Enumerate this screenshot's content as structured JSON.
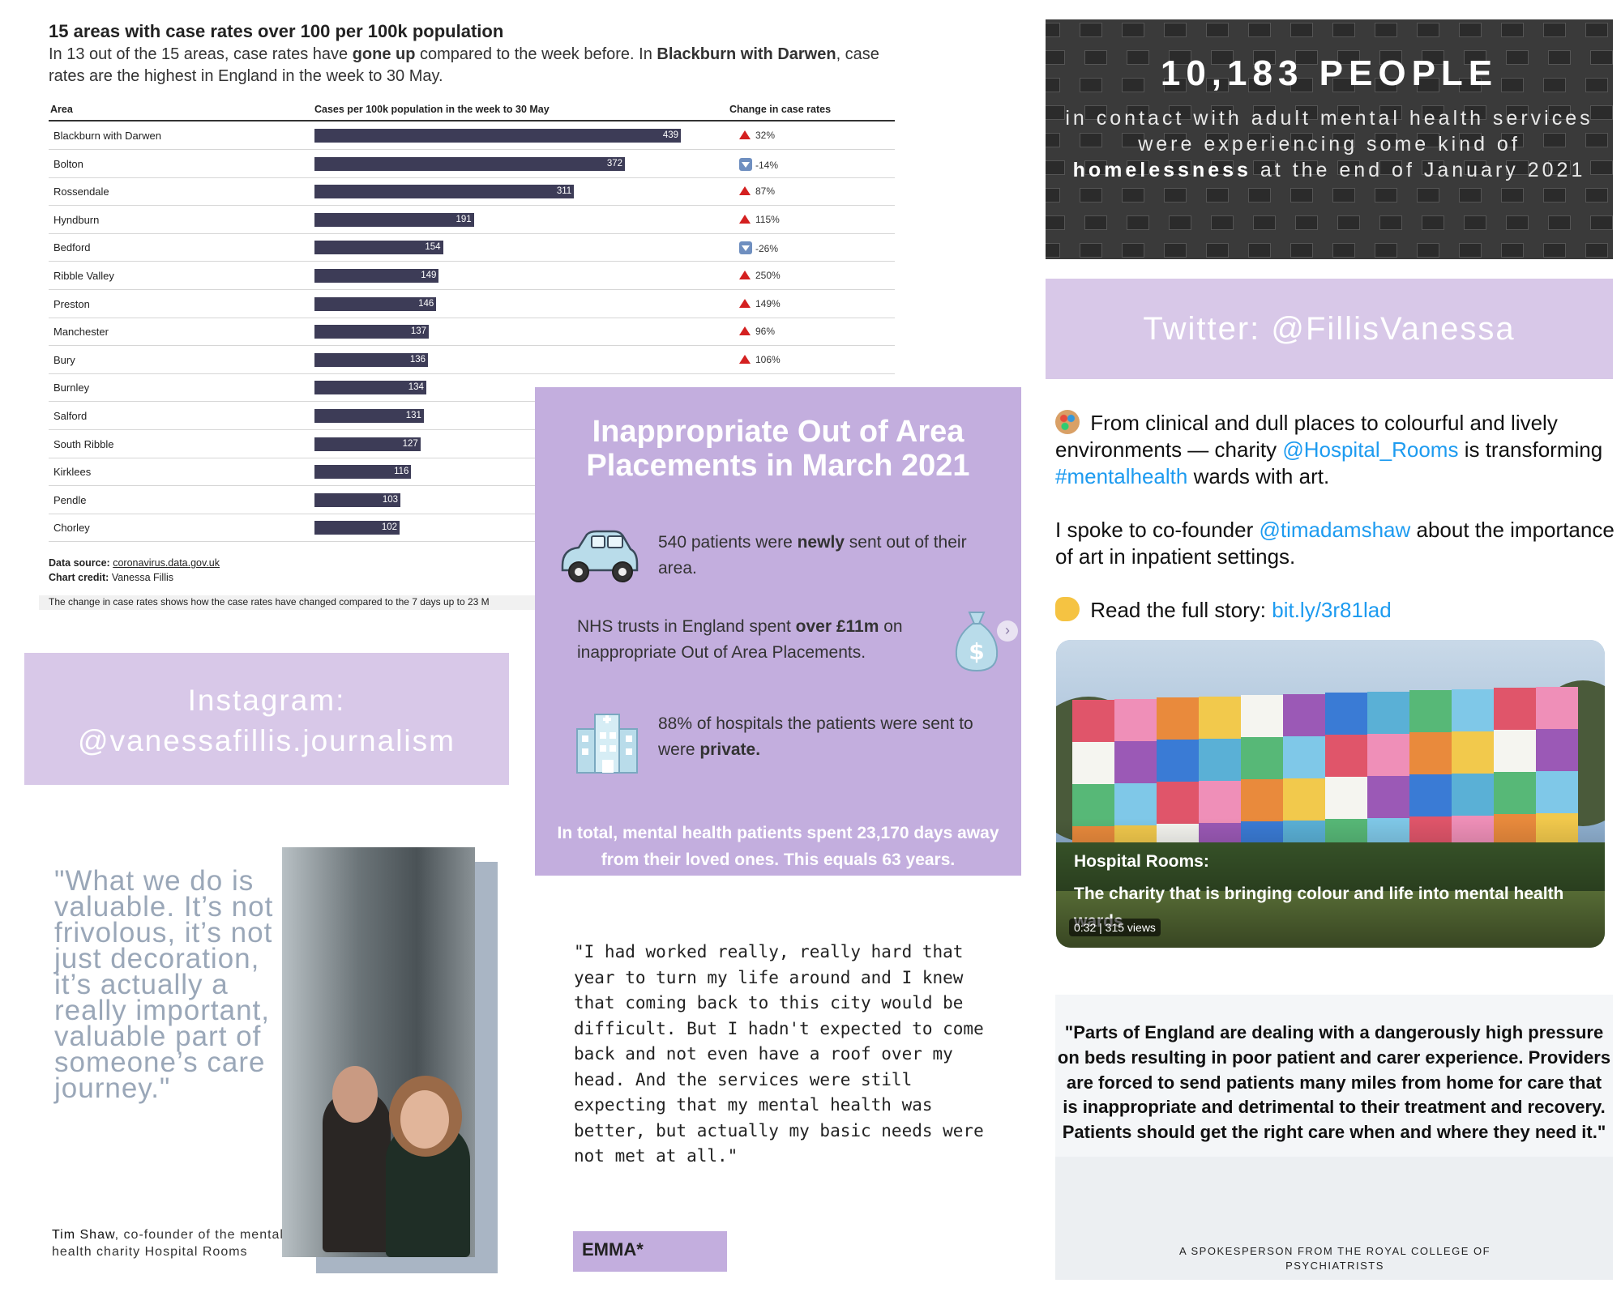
{
  "chart": {
    "title": "15 areas with case rates over 100 per 100k population",
    "subtitle_parts": {
      "p1": "In 13 out of the 15 areas, case rates have ",
      "b1": "gone up",
      "p2": " compared to the week before. In ",
      "b2": "Blackburn with Darwen",
      "p3": ", case rates are the highest in England in the week to 30 May."
    },
    "col_area": "Area",
    "col_cases": "Cases per 100k population in the week to 30 May",
    "col_change": "Change in case rates",
    "rows": [
      {
        "area": "Blackburn with Darwen",
        "value": "439",
        "change": "32%",
        "dir": "up"
      },
      {
        "area": "Bolton",
        "value": "372",
        "change": "-14%",
        "dir": "down"
      },
      {
        "area": "Rossendale",
        "value": "311",
        "change": "87%",
        "dir": "up"
      },
      {
        "area": "Hyndburn",
        "value": "191",
        "change": "115%",
        "dir": "up"
      },
      {
        "area": "Bedford",
        "value": "154",
        "change": "-26%",
        "dir": "down"
      },
      {
        "area": "Ribble Valley",
        "value": "149",
        "change": "250%",
        "dir": "up"
      },
      {
        "area": "Preston",
        "value": "146",
        "change": "149%",
        "dir": "up"
      },
      {
        "area": "Manchester",
        "value": "137",
        "change": "96%",
        "dir": "up"
      },
      {
        "area": "Bury",
        "value": "136",
        "change": "106%",
        "dir": "up"
      },
      {
        "area": "Burnley",
        "value": "134",
        "change": "",
        "dir": "none"
      },
      {
        "area": "Salford",
        "value": "131",
        "change": "",
        "dir": "none"
      },
      {
        "area": "South Ribble",
        "value": "127",
        "change": "",
        "dir": "none"
      },
      {
        "area": "Kirklees",
        "value": "116",
        "change": "",
        "dir": "none"
      },
      {
        "area": "Pendle",
        "value": "103",
        "change": "",
        "dir": "none"
      },
      {
        "area": "Chorley",
        "value": "102",
        "change": "",
        "dir": "none"
      }
    ],
    "source_label": "Data source:",
    "source_value": "coronavirus.data.gov.uk",
    "credit_label": "Chart credit:",
    "credit_value": "Vanessa Fillis",
    "note": "The change in case rates shows how the case rates have changed compared to the 7 days up to 23 M"
  },
  "chart_data": {
    "type": "bar",
    "title": "15 areas with case rates over 100 per 100k population",
    "categories": [
      "Blackburn with Darwen",
      "Bolton",
      "Rossendale",
      "Hyndburn",
      "Bedford",
      "Ribble Valley",
      "Preston",
      "Manchester",
      "Bury",
      "Burnley",
      "Salford",
      "South Ribble",
      "Kirklees",
      "Pendle",
      "Chorley"
    ],
    "values": [
      439,
      372,
      311,
      191,
      154,
      149,
      146,
      137,
      136,
      134,
      131,
      127,
      116,
      103,
      102
    ],
    "xlabel": "Cases per 100k population in the week to 30 May",
    "ylabel": "Area",
    "xlim": [
      0,
      439
    ],
    "orientation": "horizontal",
    "bar_color": "#3d3c57",
    "change_in_case_rates": [
      "32%",
      "-14%",
      "87%",
      "115%",
      "-26%",
      "250%",
      "149%",
      "96%",
      "106%"
    ]
  },
  "stat": {
    "big": "10,183 PEOPLE",
    "p1": "in contact with adult mental health services were experiencing some kind of ",
    "bold": "homelessness",
    "p2": " at the end of January 2021"
  },
  "twitter": {
    "label": "Twitter: @FillisVanessa"
  },
  "instagram": {
    "line1": "Instagram:",
    "line2": "@vanessafillis.journalism"
  },
  "tweet": {
    "palette_icon": "palette-icon",
    "pointing_icon": "backhand-index-pointing-right-icon",
    "t1a": " From clinical and dull places to colourful and lively environments — charity ",
    "t1_handle": "@Hospital_Rooms",
    "t1b": " is transforming ",
    "t1_tag": "#mentalhealth",
    "t1c": " wards with art.",
    "t2a": "I spoke to co-founder ",
    "t2_handle": "@timadamshaw",
    "t2b": " about the importance of art in inpatient settings.",
    "t3a": " Read the full story: ",
    "t3_link": "bit.ly/3r81lad",
    "link_color": "#1d9bf0"
  },
  "video": {
    "caption1": "Hospital Rooms:",
    "caption2": "The charity that is bringing colour and life into mental health wards",
    "duration": "0:32",
    "views": "315 views"
  },
  "oap": {
    "heading": "Inappropriate Out of Area Placements in March 2021",
    "i1a": "540 patients were ",
    "i1b": "newly",
    "i1c": " sent out of their area.",
    "i2a": "NHS trusts in England spent ",
    "i2b": "over £11m",
    "i2c": " on inappropriate Out of Area Placements.",
    "i3a": "88% of hospitals the patients were sent to were ",
    "i3b": "private.",
    "total": "In total, mental health patients spent 23,170 days away from their loved ones. This equals 63 years.",
    "car_icon": "car-icon",
    "money_icon": "money-bag-icon",
    "hospital_icon": "hospital-icon",
    "arrow_glyph": "›"
  },
  "tim": {
    "quote": "\"What we do is valuable. It’s not frivolous, it’s not just decoration, it’s actually a really important, valuable part of someone’s care journey.\"",
    "name": "Tim Shaw",
    "role": ", co-founder of the mental health charity Hospital Rooms"
  },
  "emma": {
    "quote": "\"I had worked really, really hard that year to turn my life around and I knew that coming back to this city would be difficult. But I hadn't expected to come back and not even have a roof over my head. And the services were still expecting that my mental health was better, but actually my basic needs were not met at all.\"",
    "name": "EMMA*"
  },
  "rcp": {
    "quote": "\"Parts of England are dealing with a dangerously high pressure on beds resulting in poor patient and carer experience. Providers are forced to send patients many miles from home for care that is inappropriate and detrimental to their treatment and recovery. Patients should get the right care when and where they need it.\"",
    "attrib": "A SPOKESPERSON FROM THE ROYAL COLLEGE OF PSYCHIATRISTS"
  }
}
